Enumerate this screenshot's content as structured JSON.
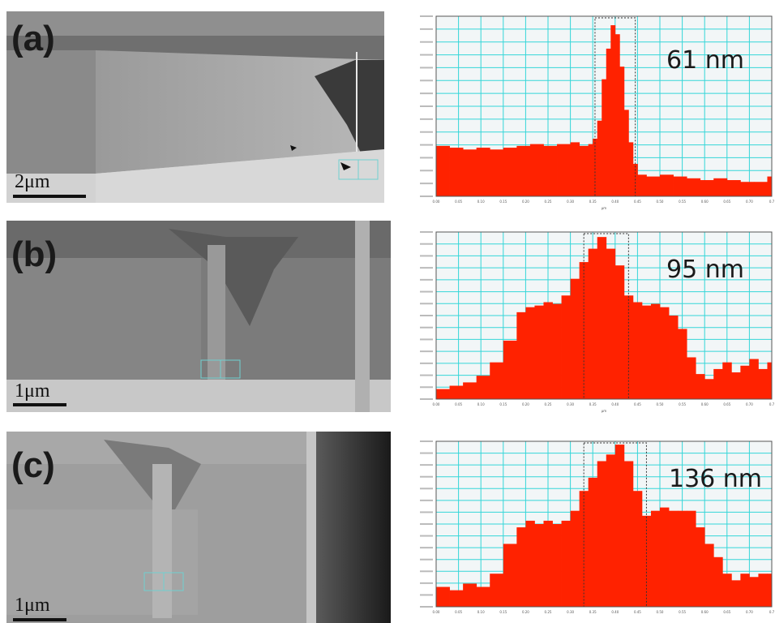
{
  "figure": {
    "panels": [
      {
        "label": "(a)",
        "scalebar": "2μm",
        "fwhm": "61 nm"
      },
      {
        "label": "(b)",
        "scalebar": "1μm",
        "fwhm": "95 nm"
      },
      {
        "label": "(c)",
        "scalebar": "1μm",
        "fwhm": "136 nm"
      }
    ]
  },
  "colors": {
    "bar": "#ff2200",
    "grid": "#34d6d8",
    "plot_bg": "#f2f6f7"
  },
  "chart_data": [
    {
      "type": "area",
      "fwhm_label": "61 nm",
      "x_ticks": [
        "0.00",
        "0.05",
        "0.10",
        "0.15",
        "0.20",
        "0.25",
        "0.30",
        "0.35",
        "0.40",
        "0.45",
        "0.50",
        "0.55",
        "0.60",
        "0.65",
        "0.70",
        "0.7"
      ],
      "x_unit": "µm",
      "xlim": [
        0,
        0.75
      ],
      "ylim": [
        0,
        1
      ],
      "window": [
        0.355,
        0.445
      ],
      "x": [
        0.0,
        0.03,
        0.06,
        0.09,
        0.12,
        0.15,
        0.18,
        0.21,
        0.24,
        0.27,
        0.3,
        0.32,
        0.34,
        0.35,
        0.36,
        0.37,
        0.38,
        0.39,
        0.4,
        0.41,
        0.42,
        0.43,
        0.44,
        0.45,
        0.47,
        0.5,
        0.53,
        0.56,
        0.59,
        0.62,
        0.65,
        0.68,
        0.71,
        0.74
      ],
      "values": [
        0.28,
        0.27,
        0.26,
        0.27,
        0.26,
        0.27,
        0.28,
        0.29,
        0.28,
        0.29,
        0.3,
        0.28,
        0.29,
        0.32,
        0.42,
        0.65,
        0.82,
        0.95,
        0.9,
        0.72,
        0.48,
        0.3,
        0.18,
        0.12,
        0.11,
        0.12,
        0.11,
        0.1,
        0.09,
        0.1,
        0.09,
        0.08,
        0.08,
        0.11
      ]
    },
    {
      "type": "area",
      "fwhm_label": "95 nm",
      "x_ticks": [
        "0.00",
        "0.05",
        "0.10",
        "0.15",
        "0.20",
        "0.25",
        "0.30",
        "0.35",
        "0.40",
        "0.45",
        "0.50",
        "0.55",
        "0.60",
        "0.65",
        "0.70",
        "0.7"
      ],
      "x_unit": "µm",
      "xlim": [
        0,
        0.75
      ],
      "ylim": [
        0,
        1
      ],
      "window": [
        0.33,
        0.43
      ],
      "x": [
        0.0,
        0.03,
        0.06,
        0.09,
        0.12,
        0.15,
        0.18,
        0.2,
        0.22,
        0.24,
        0.26,
        0.28,
        0.3,
        0.32,
        0.34,
        0.36,
        0.38,
        0.4,
        0.42,
        0.44,
        0.46,
        0.48,
        0.5,
        0.52,
        0.54,
        0.56,
        0.58,
        0.6,
        0.62,
        0.64,
        0.66,
        0.68,
        0.7,
        0.72,
        0.74
      ],
      "values": [
        0.06,
        0.08,
        0.1,
        0.14,
        0.22,
        0.35,
        0.52,
        0.55,
        0.56,
        0.58,
        0.57,
        0.62,
        0.72,
        0.82,
        0.9,
        0.97,
        0.9,
        0.8,
        0.62,
        0.58,
        0.56,
        0.57,
        0.55,
        0.5,
        0.42,
        0.25,
        0.15,
        0.12,
        0.18,
        0.22,
        0.16,
        0.2,
        0.24,
        0.18,
        0.22
      ]
    },
    {
      "type": "area",
      "fwhm_label": "136 nm",
      "x_ticks": [
        "0.00",
        "0.05",
        "0.10",
        "0.15",
        "0.20",
        "0.25",
        "0.30",
        "0.35",
        "0.40",
        "0.45",
        "0.50",
        "0.55",
        "0.60",
        "0.65",
        "0.70",
        "0.7"
      ],
      "x_unit": "",
      "xlim": [
        0,
        0.75
      ],
      "ylim": [
        0,
        1
      ],
      "window": [
        0.33,
        0.47
      ],
      "x": [
        0.0,
        0.03,
        0.06,
        0.09,
        0.12,
        0.15,
        0.18,
        0.2,
        0.22,
        0.24,
        0.26,
        0.28,
        0.3,
        0.32,
        0.34,
        0.36,
        0.38,
        0.4,
        0.42,
        0.44,
        0.46,
        0.48,
        0.5,
        0.52,
        0.54,
        0.56,
        0.58,
        0.6,
        0.62,
        0.64,
        0.66,
        0.68,
        0.7,
        0.72,
        0.74
      ],
      "values": [
        0.12,
        0.1,
        0.14,
        0.12,
        0.2,
        0.38,
        0.48,
        0.52,
        0.5,
        0.52,
        0.5,
        0.52,
        0.58,
        0.7,
        0.78,
        0.88,
        0.92,
        0.98,
        0.88,
        0.7,
        0.55,
        0.58,
        0.6,
        0.58,
        0.58,
        0.58,
        0.48,
        0.38,
        0.3,
        0.2,
        0.16,
        0.2,
        0.18,
        0.2,
        0.2
      ]
    }
  ]
}
